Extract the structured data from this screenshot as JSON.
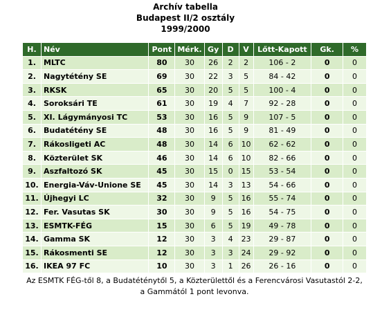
{
  "header": {
    "title": "Archív tabella",
    "subtitle": "Budapest II/2 osztály",
    "season": "1999/2000"
  },
  "table": {
    "columns": [
      "H.",
      "Név",
      "Pont",
      "Mérk.",
      "Gy",
      "D",
      "V",
      "Lőtt-Kapott",
      "Gk.",
      "%"
    ],
    "rows": [
      [
        "1.",
        "MLTC",
        80,
        30,
        26,
        2,
        2,
        "106 - 2",
        0,
        0
      ],
      [
        "2.",
        "Nagytétény SE",
        69,
        30,
        22,
        3,
        5,
        "84 - 42",
        0,
        0
      ],
      [
        "3.",
        "RKSK",
        65,
        30,
        20,
        5,
        5,
        "100 - 4",
        0,
        0
      ],
      [
        "4.",
        "Soroksári TE",
        61,
        30,
        19,
        4,
        7,
        "92 - 28",
        0,
        0
      ],
      [
        "5.",
        "XI. Lágymányosi TC",
        53,
        30,
        16,
        5,
        9,
        "107 - 5",
        0,
        0
      ],
      [
        "6.",
        "Budatétény SE",
        48,
        30,
        16,
        5,
        9,
        "81 - 49",
        0,
        0
      ],
      [
        "7.",
        "Rákosligeti AC",
        48,
        30,
        14,
        6,
        10,
        "62 - 62",
        0,
        0
      ],
      [
        "8.",
        "Közterület SK",
        46,
        30,
        14,
        6,
        10,
        "82 - 66",
        0,
        0
      ],
      [
        "9.",
        "Aszfaltozó SK",
        45,
        30,
        15,
        0,
        15,
        "53 - 54",
        0,
        0
      ],
      [
        "10.",
        "Energia-Váv-Unione SE",
        45,
        30,
        14,
        3,
        13,
        "54 - 66",
        0,
        0
      ],
      [
        "11.",
        "Újhegyi LC",
        32,
        30,
        9,
        5,
        16,
        "55 - 74",
        0,
        0
      ],
      [
        "12.",
        "Fer. Vasutas SK",
        30,
        30,
        9,
        5,
        16,
        "54 - 75",
        0,
        0
      ],
      [
        "13.",
        "ESMTK-FÉG",
        15,
        30,
        6,
        5,
        19,
        "49 - 78",
        0,
        0
      ],
      [
        "14.",
        "Gamma SK",
        12,
        30,
        3,
        4,
        23,
        "29 - 87",
        0,
        0
      ],
      [
        "15.",
        "Rákosmenti SE",
        12,
        30,
        3,
        3,
        24,
        "29 - 92",
        0,
        0
      ],
      [
        "16.",
        "IKEA 97 FC",
        10,
        30,
        3,
        1,
        26,
        "26 - 16",
        0,
        0
      ]
    ],
    "note": "Az ESMTK FÉG-től 8, a Budatéténytől 5, a Közterülettől és a Ferencvárosi Vasutastól 2-2, a Gammától 1 pont levonva."
  }
}
